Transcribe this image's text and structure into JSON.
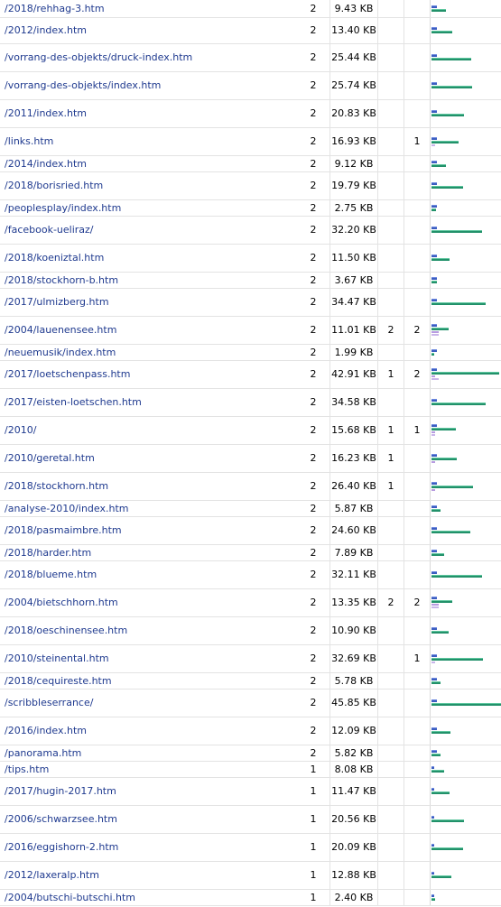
{
  "colors": {
    "link": "#1f3a8f",
    "pages_bar": "#3b5dc0",
    "size_bar": "#22916a",
    "entry_bar": "#b79be0",
    "exit_bar": "#c9b5ea"
  },
  "rows": [
    {
      "url": "/2018/rehhag-3.htm",
      "pages": "2",
      "size": "9.43 KB",
      "entry": "",
      "exit": "",
      "size_kb": 9.43,
      "h": 19
    },
    {
      "url": "/2012/index.htm",
      "pages": "2",
      "size": "13.40 KB",
      "entry": "",
      "exit": "",
      "size_kb": 13.4,
      "h": 29
    },
    {
      "url": "/vorrang-des-objekts/druck-index.htm",
      "pages": "2",
      "size": "25.44 KB",
      "entry": "",
      "exit": "",
      "size_kb": 25.44,
      "h": 31
    },
    {
      "url": "/vorrang-des-objekts/index.htm",
      "pages": "2",
      "size": "25.74 KB",
      "entry": "",
      "exit": "",
      "size_kb": 25.74,
      "h": 31
    },
    {
      "url": "/2011/index.htm",
      "pages": "2",
      "size": "20.83 KB",
      "entry": "",
      "exit": "",
      "size_kb": 20.83,
      "h": 31
    },
    {
      "url": "/links.htm",
      "pages": "2",
      "size": "16.93 KB",
      "entry": "",
      "exit": "1",
      "size_kb": 16.93,
      "h": 31
    },
    {
      "url": "/2014/index.htm",
      "pages": "2",
      "size": "9.12 KB",
      "entry": "",
      "exit": "",
      "size_kb": 9.12,
      "h": 18
    },
    {
      "url": "/2018/borisried.htm",
      "pages": "2",
      "size": "19.79 KB",
      "entry": "",
      "exit": "",
      "size_kb": 19.79,
      "h": 31
    },
    {
      "url": "/peoplesplay/index.htm",
      "pages": "2",
      "size": "2.75 KB",
      "entry": "",
      "exit": "",
      "size_kb": 2.75,
      "h": 18
    },
    {
      "url": "/facebook-ueliraz/",
      "pages": "2",
      "size": "32.20 KB",
      "entry": "",
      "exit": "",
      "size_kb": 32.2,
      "h": 31
    },
    {
      "url": "/2018/koeniztal.htm",
      "pages": "2",
      "size": "11.50 KB",
      "entry": "",
      "exit": "",
      "size_kb": 11.5,
      "h": 31
    },
    {
      "url": "/2018/stockhorn-b.htm",
      "pages": "2",
      "size": "3.67 KB",
      "entry": "",
      "exit": "",
      "size_kb": 3.67,
      "h": 18
    },
    {
      "url": "/2017/ulmizberg.htm",
      "pages": "2",
      "size": "34.47 KB",
      "entry": "",
      "exit": "",
      "size_kb": 34.47,
      "h": 31
    },
    {
      "url": "/2004/lauenensee.htm",
      "pages": "2",
      "size": "11.01 KB",
      "entry": "2",
      "exit": "2",
      "size_kb": 11.01,
      "h": 31
    },
    {
      "url": "/neuemusik/index.htm",
      "pages": "2",
      "size": "1.99 KB",
      "entry": "",
      "exit": "",
      "size_kb": 1.99,
      "h": 18
    },
    {
      "url": "/2017/loetschenpass.htm",
      "pages": "2",
      "size": "42.91 KB",
      "entry": "1",
      "exit": "2",
      "size_kb": 42.91,
      "h": 31
    },
    {
      "url": "/2017/eisten-loetschen.htm",
      "pages": "2",
      "size": "34.58 KB",
      "entry": "",
      "exit": "",
      "size_kb": 34.58,
      "h": 31
    },
    {
      "url": "/2010/",
      "pages": "2",
      "size": "15.68 KB",
      "entry": "1",
      "exit": "1",
      "size_kb": 15.68,
      "h": 31
    },
    {
      "url": "/2010/geretal.htm",
      "pages": "2",
      "size": "16.23 KB",
      "entry": "1",
      "exit": "",
      "size_kb": 16.23,
      "h": 31
    },
    {
      "url": "/2018/stockhorn.htm",
      "pages": "2",
      "size": "26.40 KB",
      "entry": "1",
      "exit": "",
      "size_kb": 26.4,
      "h": 31
    },
    {
      "url": "/analyse-2010/index.htm",
      "pages": "2",
      "size": "5.87 KB",
      "entry": "",
      "exit": "",
      "size_kb": 5.87,
      "h": 18
    },
    {
      "url": "/2018/pasmaimbre.htm",
      "pages": "2",
      "size": "24.60 KB",
      "entry": "",
      "exit": "",
      "size_kb": 24.6,
      "h": 31
    },
    {
      "url": "/2018/harder.htm",
      "pages": "2",
      "size": "7.89 KB",
      "entry": "",
      "exit": "",
      "size_kb": 7.89,
      "h": 18
    },
    {
      "url": "/2018/blueme.htm",
      "pages": "2",
      "size": "32.11 KB",
      "entry": "",
      "exit": "",
      "size_kb": 32.11,
      "h": 31
    },
    {
      "url": "/2004/bietschhorn.htm",
      "pages": "2",
      "size": "13.35 KB",
      "entry": "2",
      "exit": "2",
      "size_kb": 13.35,
      "h": 31
    },
    {
      "url": "/2018/oeschinensee.htm",
      "pages": "2",
      "size": "10.90 KB",
      "entry": "",
      "exit": "",
      "size_kb": 10.9,
      "h": 31
    },
    {
      "url": "/2010/steinental.htm",
      "pages": "2",
      "size": "32.69 KB",
      "entry": "",
      "exit": "1",
      "size_kb": 32.69,
      "h": 31
    },
    {
      "url": "/2018/cequireste.htm",
      "pages": "2",
      "size": "5.78 KB",
      "entry": "",
      "exit": "",
      "size_kb": 5.78,
      "h": 18
    },
    {
      "url": "/scribbleserrance/",
      "pages": "2",
      "size": "45.85 KB",
      "entry": "",
      "exit": "",
      "size_kb": 45.85,
      "h": 31
    },
    {
      "url": "/2016/index.htm",
      "pages": "2",
      "size": "12.09 KB",
      "entry": "",
      "exit": "",
      "size_kb": 12.09,
      "h": 31
    },
    {
      "url": "/panorama.htm",
      "pages": "2",
      "size": "5.82 KB",
      "entry": "",
      "exit": "",
      "size_kb": 5.82,
      "h": 18
    },
    {
      "url": "/tips.htm",
      "pages": "1",
      "size": "8.08 KB",
      "entry": "",
      "exit": "",
      "size_kb": 8.08,
      "h": 18
    },
    {
      "url": "/2017/hugin-2017.htm",
      "pages": "1",
      "size": "11.47 KB",
      "entry": "",
      "exit": "",
      "size_kb": 11.47,
      "h": 31
    },
    {
      "url": "/2006/schwarzsee.htm",
      "pages": "1",
      "size": "20.56 KB",
      "entry": "",
      "exit": "",
      "size_kb": 20.56,
      "h": 31
    },
    {
      "url": "/2016/eggishorn-2.htm",
      "pages": "1",
      "size": "20.09 KB",
      "entry": "",
      "exit": "",
      "size_kb": 20.09,
      "h": 31
    },
    {
      "url": "/2012/laxeralp.htm",
      "pages": "1",
      "size": "12.88 KB",
      "entry": "",
      "exit": "",
      "size_kb": 12.88,
      "h": 31
    },
    {
      "url": "/2004/butschi-butschi.htm",
      "pages": "1",
      "size": "2.40 KB",
      "entry": "",
      "exit": "",
      "size_kb": 2.4,
      "h": 18
    }
  ]
}
